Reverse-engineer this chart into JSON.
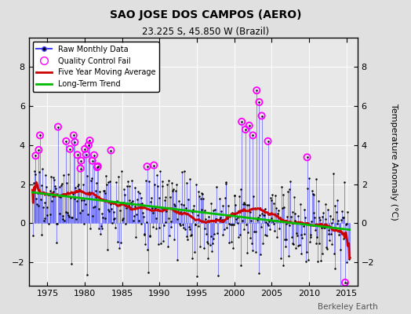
{
  "title": "SAO JOSE DOS CAMPOS (AERO)",
  "subtitle": "23.225 S, 45.850 W (Brazil)",
  "ylabel": "Temperature Anomaly (°C)",
  "watermark": "Berkeley Earth",
  "xlim": [
    1972.5,
    2016.5
  ],
  "ylim": [
    -3.2,
    9.5
  ],
  "yticks": [
    -2,
    0,
    2,
    4,
    6,
    8
  ],
  "xticks": [
    1975,
    1980,
    1985,
    1990,
    1995,
    2000,
    2005,
    2010,
    2015
  ],
  "bg_color": "#e0e0e0",
  "plot_bg_color": "#e8e8e8",
  "raw_line_color": "#4444ff",
  "raw_dot_color": "#000000",
  "moving_avg_color": "#cc0000",
  "trend_color": "#00bb00",
  "qc_color": "#ff00ff",
  "seed": 17
}
